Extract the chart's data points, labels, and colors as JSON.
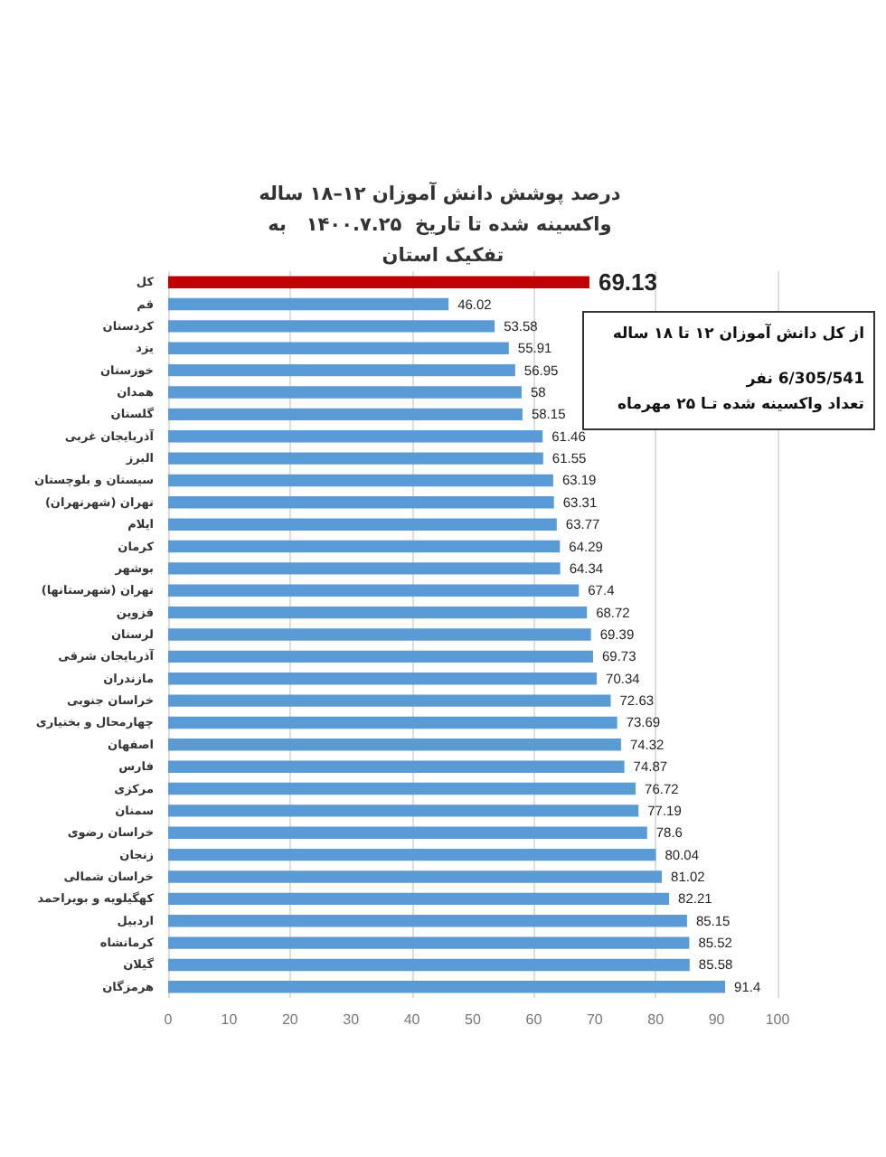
{
  "chart_data": {
    "type": "bar",
    "orientation": "horizontal",
    "title": "درصد پوشش دانش آموزان ۱۲–۱۸ ساله واکسینه شده تا تاریخ  ۱۴۰۰.۷.۲۵   به تفکیک استان",
    "categories": [
      "کل",
      "قم",
      "کردستان",
      "یزد",
      "خوزستان",
      "همدان",
      "گلستان",
      "آذربایجان غربی",
      "البرز",
      "سیستان و بلوچستان",
      "تهران (شهرتهران)",
      "ایلام",
      "کرمان",
      "بوشهر",
      "تهران (شهرستانها)",
      "قزوین",
      "لرستان",
      "آذربایجان شرقی",
      "مازندران",
      "خراسان جنوبی",
      "چهارمحال و بختیاری",
      "اصفهان",
      "فارس",
      "مرکزی",
      "سمنان",
      "خراسان رضوی",
      "زنجان",
      "خراسان شمالی",
      "کهگیلویه و بویراحمد",
      "اردبیل",
      "کرمانشاه",
      "گیلان",
      "هرمزگان"
    ],
    "values": [
      69.13,
      46.02,
      53.58,
      55.91,
      56.95,
      58,
      58.15,
      61.46,
      61.55,
      63.19,
      63.31,
      63.77,
      64.29,
      64.34,
      67.4,
      68.72,
      69.39,
      69.73,
      70.34,
      72.63,
      73.69,
      74.32,
      74.87,
      76.72,
      77.19,
      78.6,
      80.04,
      81.02,
      82.21,
      85.15,
      85.52,
      85.58,
      91.4
    ],
    "colors": [
      "#c00000",
      "#5b9bd5",
      "#5b9bd5",
      "#5b9bd5",
      "#5b9bd5",
      "#5b9bd5",
      "#5b9bd5",
      "#5b9bd5",
      "#5b9bd5",
      "#5b9bd5",
      "#5b9bd5",
      "#5b9bd5",
      "#5b9bd5",
      "#5b9bd5",
      "#5b9bd5",
      "#5b9bd5",
      "#5b9bd5",
      "#5b9bd5",
      "#5b9bd5",
      "#5b9bd5",
      "#5b9bd5",
      "#5b9bd5",
      "#5b9bd5",
      "#5b9bd5",
      "#5b9bd5",
      "#5b9bd5",
      "#5b9bd5",
      "#5b9bd5",
      "#5b9bd5",
      "#5b9bd5",
      "#5b9bd5",
      "#5b9bd5",
      "#5b9bd5"
    ],
    "xlim": [
      0,
      100
    ],
    "xticks": [
      0,
      10,
      20,
      30,
      40,
      50,
      60,
      70,
      80,
      90,
      100
    ],
    "grid": "x",
    "data_labels": true,
    "annotations": [
      "از کل دانش آموزان ۱۲ تا ۱۸ ساله",
      "6/305/541 نفر",
      "تعداد واکسینه شده تـا ۲۵ مهرماه"
    ]
  }
}
